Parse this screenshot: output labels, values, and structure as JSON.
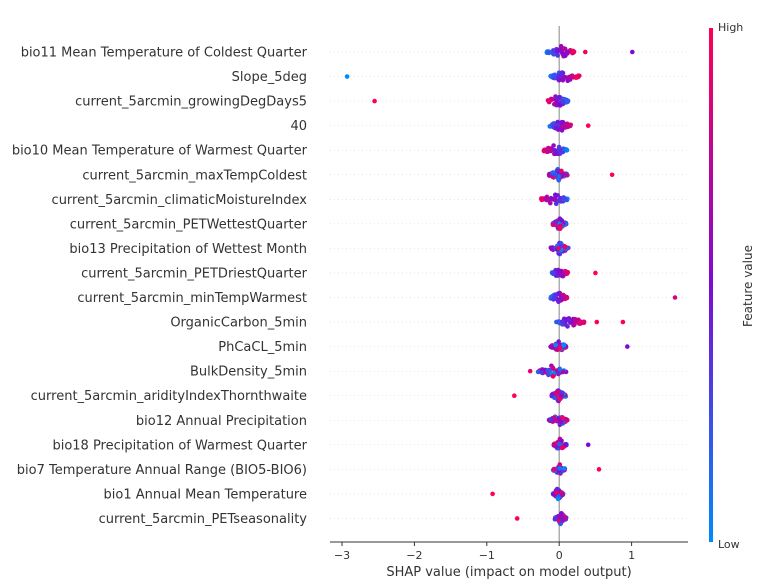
{
  "chart_data": {
    "type": "scatter",
    "subtype": "shap-beeswarm",
    "xlabel": "SHAP value (impact on model output)",
    "xlim": [
      -3.2,
      1.8
    ],
    "xticks": [
      -3,
      -2,
      -1,
      0,
      1
    ],
    "xtick_labels": [
      "−3",
      "−2",
      "−1",
      "0",
      "1"
    ],
    "features": [
      {
        "name": "bio11 Mean Temperature of Coldest Quarter",
        "min": -0.17,
        "max": 0.23,
        "outliers": [
          {
            "x": 0.36,
            "v": 0.95
          },
          {
            "x": 1.01,
            "v": 0.5
          }
        ],
        "trend": "pos"
      },
      {
        "name": "Slope_5deg",
        "min": -0.13,
        "max": 0.28,
        "outliers": [
          {
            "x": -2.93,
            "v": 0.0
          }
        ],
        "trend": "pos"
      },
      {
        "name": "current_5arcmin_growingDegDays5",
        "min": -0.17,
        "max": 0.13,
        "outliers": [
          {
            "x": -2.55,
            "v": 1.0
          }
        ],
        "trend": "neg"
      },
      {
        "name": "40",
        "min": -0.13,
        "max": 0.16,
        "outliers": [
          {
            "x": 0.4,
            "v": 1.0
          }
        ],
        "trend": "pos"
      },
      {
        "name": "bio10 Mean Temperature of Warmest Quarter",
        "min": -0.22,
        "max": 0.11,
        "outliers": [],
        "trend": "neg"
      },
      {
        "name": "current_5arcmin_maxTempColdest",
        "min": -0.14,
        "max": 0.12,
        "outliers": [
          {
            "x": 0.73,
            "v": 1.0
          }
        ],
        "trend": "mix"
      },
      {
        "name": "current_5arcmin_climaticMoistureIndex",
        "min": -0.25,
        "max": 0.12,
        "outliers": [],
        "trend": "neg"
      },
      {
        "name": "current_5arcmin_PETWettestQuarter",
        "min": -0.09,
        "max": 0.1,
        "outliers": [],
        "trend": "mix"
      },
      {
        "name": "bio13 Precipitation of Wettest Month",
        "min": -0.12,
        "max": 0.13,
        "outliers": [],
        "trend": "mix"
      },
      {
        "name": "current_5arcmin_PETDriestQuarter",
        "min": -0.1,
        "max": 0.12,
        "outliers": [
          {
            "x": 0.5,
            "v": 1.0
          }
        ],
        "trend": "pos"
      },
      {
        "name": "current_5arcmin_minTempWarmest",
        "min": -0.12,
        "max": 0.11,
        "outliers": [
          {
            "x": 1.6,
            "v": 0.85
          }
        ],
        "trend": "pos"
      },
      {
        "name": "OrganicCarbon_5min",
        "min": -0.04,
        "max": 0.35,
        "outliers": [
          {
            "x": 0.52,
            "v": 1.0
          },
          {
            "x": 0.88,
            "v": 1.0
          }
        ],
        "trend": "pos"
      },
      {
        "name": "PhCaCL_5min",
        "min": -0.12,
        "max": 0.1,
        "outliers": [
          {
            "x": 0.94,
            "v": 0.5
          }
        ],
        "trend": "mix"
      },
      {
        "name": "BulkDensity_5min",
        "min": -0.3,
        "max": 0.1,
        "outliers": [
          {
            "x": -0.4,
            "v": 0.9
          }
        ],
        "trend": "posneg"
      },
      {
        "name": "current_5arcmin_aridityIndexThornthwaite",
        "min": -0.12,
        "max": 0.1,
        "outliers": [
          {
            "x": -0.62,
            "v": 1.0
          }
        ],
        "trend": "mix"
      },
      {
        "name": "bio12 Annual Precipitation",
        "min": -0.14,
        "max": 0.12,
        "outliers": [],
        "trend": "mix"
      },
      {
        "name": "bio18 Precipitation of Warmest Quarter",
        "min": -0.08,
        "max": 0.1,
        "outliers": [
          {
            "x": 0.4,
            "v": 0.5
          }
        ],
        "trend": "mix"
      },
      {
        "name": "bio7 Temperature Annual Range (BIO5-BIO6)",
        "min": -0.09,
        "max": 0.08,
        "outliers": [
          {
            "x": 0.55,
            "v": 1.0
          }
        ],
        "trend": "mix"
      },
      {
        "name": "bio1 Annual Mean Temperature",
        "min": -0.09,
        "max": 0.06,
        "outliers": [
          {
            "x": -0.92,
            "v": 1.0
          }
        ],
        "trend": "mix"
      },
      {
        "name": "current_5arcmin_PETseasonality",
        "min": -0.06,
        "max": 0.1,
        "outliers": [
          {
            "x": -0.58,
            "v": 1.0
          }
        ],
        "trend": "mix"
      }
    ],
    "colorbar": {
      "title": "Feature value",
      "high_label": "High",
      "low_label": "Low",
      "high_color": "#ff0052",
      "low_color": "#008bfb"
    },
    "grid": false
  }
}
